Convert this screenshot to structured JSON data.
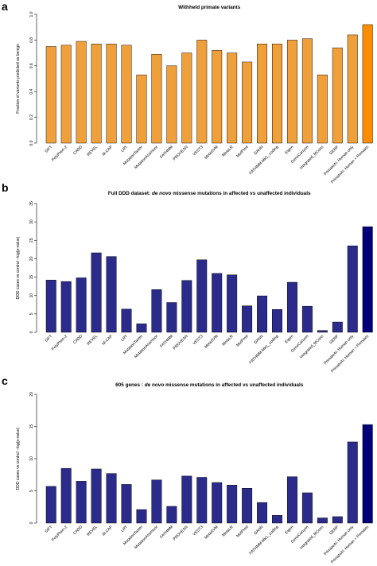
{
  "chart_data": [
    {
      "type": "bar",
      "panel": "a",
      "title": "Withheld primate variants",
      "title_italic": "",
      "title_rest": "",
      "ylabel": "Fraction of variants predicted as benign",
      "ylim": [
        0,
        1
      ],
      "yticks": [
        "0.0",
        "0.2",
        "0.4",
        "0.6",
        "0.8",
        "1.0"
      ],
      "grid": false,
      "colors": {
        "bar": "#f0a03a",
        "highlight": "#ff8c00"
      },
      "categories": [
        "SIFT",
        "PolyPhen-2",
        "CADD",
        "REVEL",
        "M-CAP",
        "LRT",
        "MutationTaster",
        "MutationAssessor",
        "FATHMM",
        "PROVEAN",
        "VEST3",
        "MetaSVM",
        "MetaLR",
        "MutPred",
        "DANN",
        "FATHMM-MKL_coding",
        "Eigen",
        "GenoCanyon",
        "integrated_fitCons",
        "GERP",
        "PrimateAI: Human only",
        "PrimateAI: Human + Primates"
      ],
      "values": [
        0.75,
        0.76,
        0.79,
        0.77,
        0.77,
        0.76,
        0.53,
        0.69,
        0.6,
        0.7,
        0.8,
        0.72,
        0.7,
        0.63,
        0.77,
        0.77,
        0.8,
        0.81,
        0.53,
        0.74,
        0.84,
        0.92
      ]
    },
    {
      "type": "bar",
      "panel": "b",
      "title": "Full DDD dataset: ",
      "title_italic": "de novo",
      "title_rest": " missense mutations in affected vs unaffected individuals",
      "ylabel": "DDD cases vs control −log(p-value)",
      "ylim": [
        0,
        35
      ],
      "yticks": [
        "0",
        "5",
        "10",
        "15",
        "20",
        "25",
        "30",
        "35"
      ],
      "grid": false,
      "colors": {
        "bar": "#2b2b8c",
        "highlight": "#00007a"
      },
      "categories": [
        "SIFT",
        "PolyPhen-2",
        "CADD",
        "REVEL",
        "M-CAP",
        "LRT",
        "MutationTaster",
        "MutationAssessor",
        "FATHMM",
        "PROVEAN",
        "VEST3",
        "MetaSVM",
        "MetaLR",
        "MutPred",
        "DANN",
        "FATHMM-MKL_coding",
        "Eigen",
        "GenoCanyon",
        "integrated_fitCons",
        "GERP",
        "PrimateAI: Human only",
        "PrimateAI: Human + Primates"
      ],
      "values": [
        14.2,
        13.8,
        14.8,
        21.6,
        20.6,
        6.3,
        2.3,
        11.6,
        8.1,
        14.1,
        19.7,
        16.0,
        15.6,
        7.2,
        9.9,
        6.2,
        13.6,
        7.1,
        0.5,
        2.8,
        23.5,
        28.7
      ]
    },
    {
      "type": "bar",
      "panel": "c",
      "title": "605 genes : ",
      "title_italic": "de novo",
      "title_rest": " missense mutations in affected vs unaffected individuals",
      "ylabel": "DDD cases vs control −log(p-value)",
      "ylim": [
        0,
        20
      ],
      "yticks": [
        "0",
        "5",
        "10",
        "15",
        "20"
      ],
      "grid": false,
      "colors": {
        "bar": "#2b2b8c",
        "highlight": "#00007a"
      },
      "categories": [
        "SIFT",
        "PolyPhen-2",
        "CADD",
        "REVEL",
        "M-CAP",
        "LRT",
        "MutationTaster",
        "MutationAssessor",
        "FATHMM",
        "PROVEAN",
        "VEST3",
        "MetaSVM",
        "MetaLR",
        "MutPred",
        "DANN",
        "FATHMM-MKL_coding",
        "Eigen",
        "GenoCanyon",
        "integrated_fitCons",
        "GERP",
        "PrimateAI: Human only",
        "PrimateAI: Human + Primates"
      ],
      "values": [
        5.7,
        8.5,
        6.5,
        8.4,
        7.7,
        6.0,
        2.1,
        6.7,
        2.6,
        7.3,
        7.1,
        6.3,
        5.9,
        5.4,
        3.2,
        1.2,
        7.2,
        4.7,
        0.8,
        1.0,
        12.6,
        15.3
      ]
    }
  ]
}
